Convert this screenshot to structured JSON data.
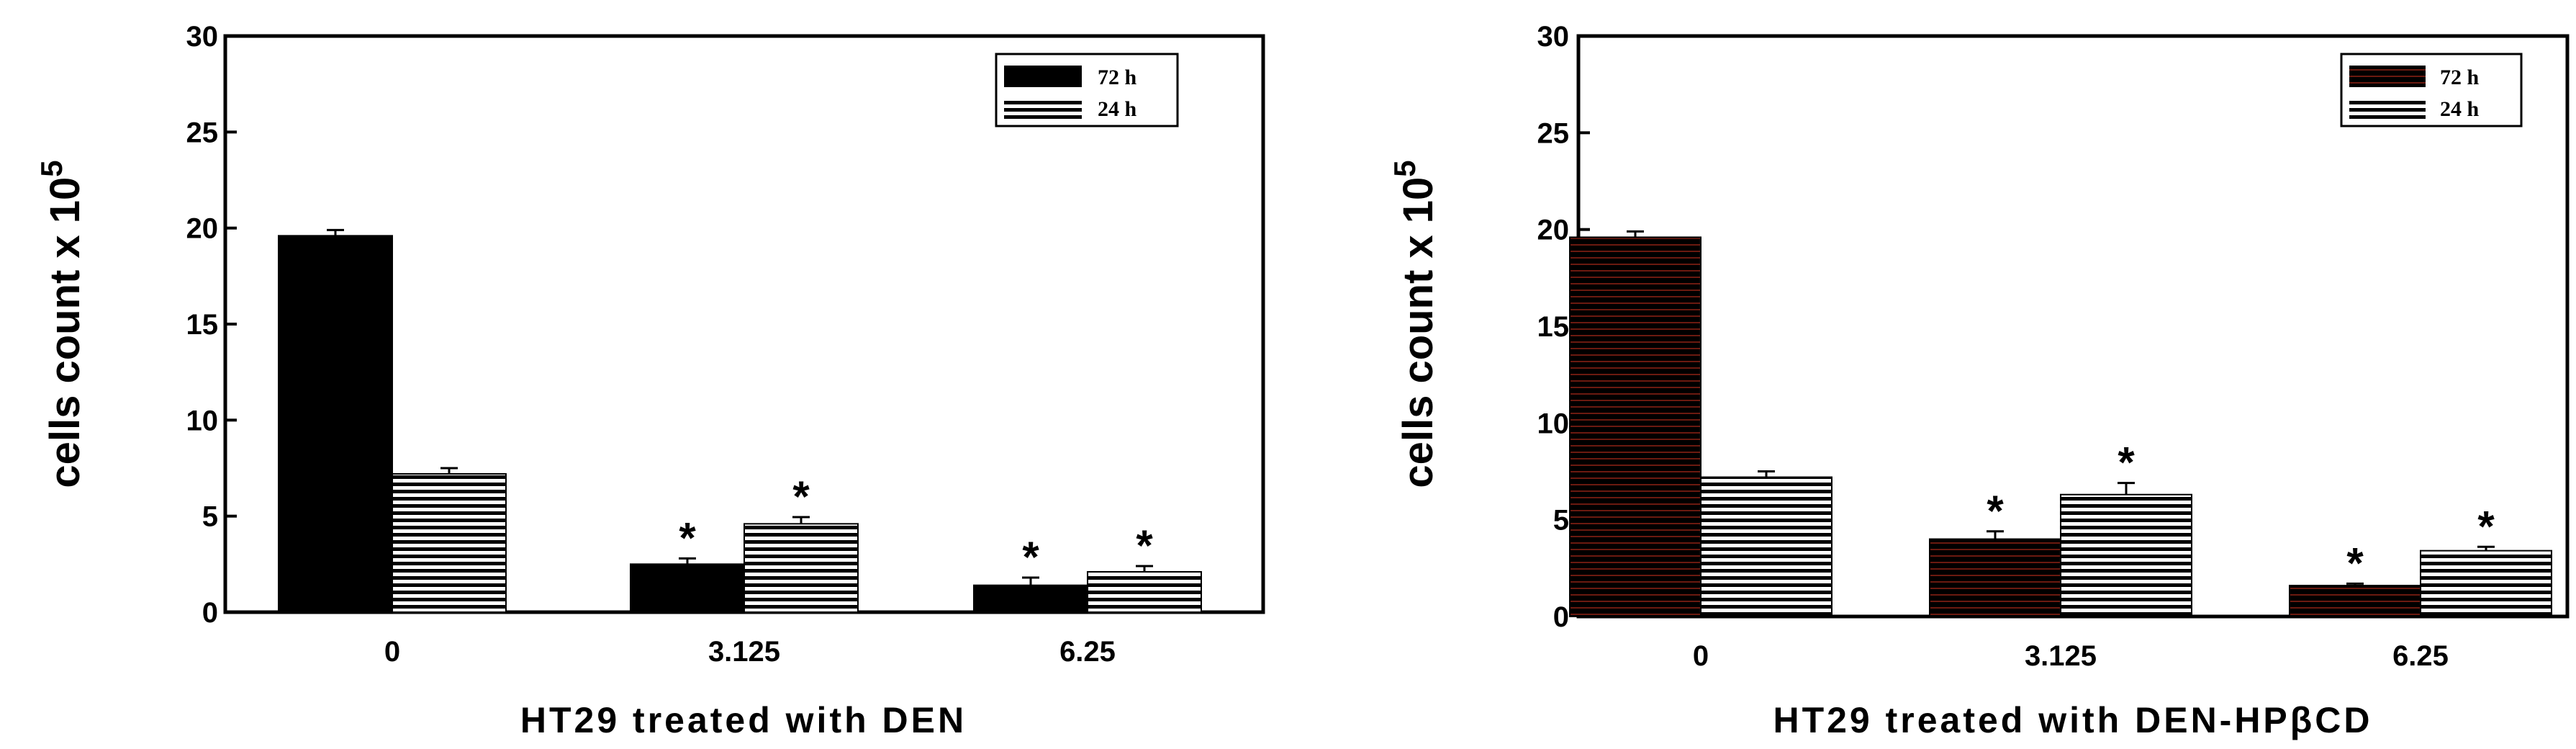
{
  "chart_data": [
    {
      "type": "bar",
      "categories": [
        "0",
        "3.125",
        "6.25"
      ],
      "series": [
        {
          "name": "72 h",
          "values": [
            19.6,
            2.5,
            1.4
          ],
          "errors": [
            0.3,
            0.3,
            0.4
          ],
          "significant": [
            false,
            true,
            true
          ],
          "color": "#000000",
          "stripe": "#000000"
        },
        {
          "name": "24 h",
          "values": [
            7.2,
            4.6,
            2.1
          ],
          "errors": [
            0.3,
            0.35,
            0.3
          ],
          "significant": [
            false,
            true,
            true
          ],
          "color": "#000000",
          "stripe": "#ffffff"
        }
      ],
      "ylabel_main": "cells count x 10",
      "ylabel_exp": "5",
      "xlabel": "HT29 treated with DEN",
      "ylim": [
        0,
        30
      ],
      "yticks": [
        "0",
        "5",
        "10",
        "15",
        "20",
        "25",
        "30"
      ],
      "marker": "*",
      "legend_position": "top-right"
    },
    {
      "type": "bar",
      "categories": [
        "0",
        "3.125",
        "6.25"
      ],
      "series": [
        {
          "name": "72 h",
          "values": [
            19.6,
            4.0,
            1.6
          ],
          "errors": [
            0.3,
            0.4,
            0.1
          ],
          "significant": [
            false,
            true,
            true
          ],
          "color": "#000000",
          "stripe": "#6b1a10"
        },
        {
          "name": "24 h",
          "values": [
            7.2,
            6.3,
            3.4
          ],
          "errors": [
            0.3,
            0.6,
            0.2
          ],
          "significant": [
            false,
            true,
            true
          ],
          "color": "#000000",
          "stripe": "#ffffff"
        }
      ],
      "ylabel_main": "cells count x 10",
      "ylabel_exp": "5",
      "xlabel": "HT29 treated with DEN-HPβCD",
      "ylim": [
        0,
        30
      ],
      "yticks": [
        "0",
        "5",
        "10",
        "15",
        "20",
        "25",
        "30"
      ],
      "marker": "*",
      "legend_position": "top-right"
    }
  ]
}
